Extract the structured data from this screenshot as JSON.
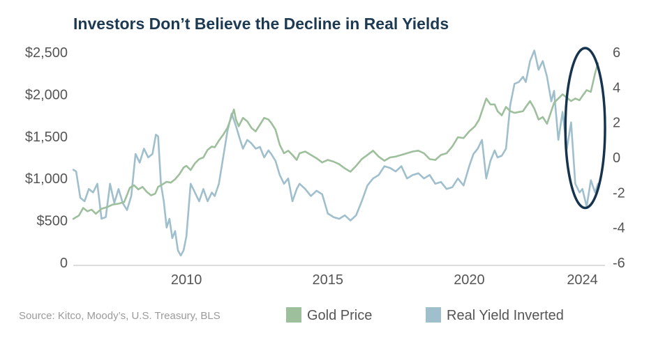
{
  "chart_data": {
    "type": "line",
    "title": "Investors Don’t Believe the Decline in Real Yields",
    "source": "Source: Kitco, Moody’s, U.S. Treasury, BLS",
    "x_axis": {
      "range": [
        2006,
        2024.8
      ],
      "ticks": [
        2010,
        2015,
        2020,
        2024
      ]
    },
    "y_left": {
      "range": [
        0,
        2500
      ],
      "ticks": [
        0,
        500,
        1000,
        1500,
        2000,
        2500
      ],
      "tick_labels": [
        "0",
        "$500",
        "$1,000",
        "$1,500",
        "$2,000",
        "$2,500"
      ]
    },
    "y_right": {
      "range": [
        -6,
        6
      ],
      "ticks": [
        -6,
        -4,
        -2,
        0,
        2,
        4,
        6
      ],
      "tick_labels": [
        "-6",
        "-4",
        "-2",
        "0",
        "2",
        "4",
        "6"
      ]
    },
    "legend_position": "bottom",
    "grid": false,
    "colors": {
      "title": "#1d3a52",
      "gold": "#9ebf9c",
      "real_yield": "#9fbfcd",
      "axis": "#bbbbbb",
      "ellipse": "#16344d"
    },
    "annotation": {
      "type": "ellipse",
      "x_range": [
        2023.4,
        2024.8
      ],
      "y_left_range": [
        650,
        2550
      ]
    },
    "series": [
      {
        "name": "Gold Price",
        "axis": "left",
        "x": [
          2006.0,
          2006.2,
          2006.35,
          2006.5,
          2006.65,
          2006.8,
          2007.0,
          2007.2,
          2007.4,
          2007.6,
          2007.8,
          2008.0,
          2008.15,
          2008.3,
          2008.45,
          2008.6,
          2008.75,
          2008.9,
          2009.0,
          2009.15,
          2009.3,
          2009.45,
          2009.6,
          2009.75,
          2009.9,
          2010.0,
          2010.15,
          2010.3,
          2010.45,
          2010.6,
          2010.75,
          2010.9,
          2011.0,
          2011.15,
          2011.3,
          2011.45,
          2011.6,
          2011.68,
          2011.75,
          2011.85,
          2012.0,
          2012.15,
          2012.3,
          2012.45,
          2012.6,
          2012.75,
          2012.9,
          2013.0,
          2013.15,
          2013.3,
          2013.45,
          2013.6,
          2013.75,
          2013.9,
          2014.0,
          2014.2,
          2014.4,
          2014.6,
          2014.8,
          2015.0,
          2015.2,
          2015.4,
          2015.6,
          2015.8,
          2016.0,
          2016.2,
          2016.4,
          2016.6,
          2016.8,
          2017.0,
          2017.2,
          2017.4,
          2017.6,
          2017.8,
          2018.0,
          2018.2,
          2018.4,
          2018.6,
          2018.8,
          2019.0,
          2019.2,
          2019.4,
          2019.6,
          2019.8,
          2020.0,
          2020.2,
          2020.35,
          2020.5,
          2020.6,
          2020.75,
          2020.9,
          2021.0,
          2021.15,
          2021.3,
          2021.45,
          2021.6,
          2021.75,
          2021.9,
          2022.0,
          2022.15,
          2022.3,
          2022.45,
          2022.6,
          2022.75,
          2022.9,
          2023.0,
          2023.15,
          2023.3,
          2023.45,
          2023.6,
          2023.75,
          2023.9,
          2024.0,
          2024.15,
          2024.3,
          2024.45,
          2024.55
        ],
        "values": [
          520,
          560,
          650,
          610,
          630,
          580,
          640,
          660,
          690,
          700,
          720,
          890,
          920,
          870,
          900,
          840,
          800,
          820,
          900,
          930,
          960,
          950,
          990,
          1050,
          1130,
          1150,
          1100,
          1180,
          1230,
          1250,
          1340,
          1380,
          1370,
          1450,
          1520,
          1600,
          1740,
          1820,
          1700,
          1620,
          1720,
          1680,
          1600,
          1560,
          1640,
          1720,
          1700,
          1660,
          1580,
          1400,
          1300,
          1330,
          1280,
          1220,
          1300,
          1320,
          1280,
          1240,
          1190,
          1220,
          1200,
          1170,
          1120,
          1080,
          1150,
          1230,
          1280,
          1330,
          1260,
          1210,
          1250,
          1260,
          1280,
          1300,
          1320,
          1330,
          1300,
          1230,
          1220,
          1280,
          1300,
          1380,
          1490,
          1480,
          1560,
          1620,
          1700,
          1850,
          1950,
          1880,
          1880,
          1800,
          1750,
          1850,
          1800,
          1780,
          1790,
          1800,
          1850,
          1920,
          1830,
          1700,
          1730,
          1650,
          1800,
          1900,
          1950,
          2000,
          1960,
          1920,
          1950,
          1930,
          1980,
          2050,
          2030,
          2250,
          2370
        ]
      },
      {
        "name": "Real Yield Inverted",
        "axis": "right",
        "x": [
          2006.0,
          2006.1,
          2006.25,
          2006.4,
          2006.55,
          2006.7,
          2006.85,
          2007.0,
          2007.15,
          2007.3,
          2007.45,
          2007.6,
          2007.75,
          2007.9,
          2008.05,
          2008.2,
          2008.35,
          2008.5,
          2008.65,
          2008.8,
          2008.92,
          2009.0,
          2009.1,
          2009.2,
          2009.3,
          2009.4,
          2009.5,
          2009.6,
          2009.7,
          2009.8,
          2009.9,
          2010.0,
          2010.15,
          2010.3,
          2010.45,
          2010.6,
          2010.75,
          2010.9,
          2011.0,
          2011.15,
          2011.3,
          2011.45,
          2011.6,
          2011.75,
          2011.9,
          2012.0,
          2012.15,
          2012.3,
          2012.45,
          2012.6,
          2012.75,
          2012.9,
          2013.0,
          2013.15,
          2013.3,
          2013.45,
          2013.6,
          2013.75,
          2013.9,
          2014.0,
          2014.2,
          2014.4,
          2014.6,
          2014.8,
          2015.0,
          2015.2,
          2015.4,
          2015.6,
          2015.8,
          2016.0,
          2016.2,
          2016.4,
          2016.6,
          2016.8,
          2017.0,
          2017.2,
          2017.4,
          2017.6,
          2017.8,
          2018.0,
          2018.2,
          2018.4,
          2018.6,
          2018.8,
          2019.0,
          2019.2,
          2019.4,
          2019.6,
          2019.8,
          2020.0,
          2020.15,
          2020.3,
          2020.45,
          2020.6,
          2020.75,
          2020.9,
          2021.0,
          2021.15,
          2021.3,
          2021.45,
          2021.6,
          2021.75,
          2021.9,
          2022.0,
          2022.15,
          2022.3,
          2022.45,
          2022.6,
          2022.75,
          2022.9,
          2023.0,
          2023.15,
          2023.3,
          2023.45,
          2023.6,
          2023.75,
          2023.9,
          2024.0,
          2024.15,
          2024.3,
          2024.45,
          2024.55
        ],
        "values": [
          -0.7,
          -0.8,
          -2.3,
          -2.5,
          -1.8,
          -2.0,
          -1.5,
          -3.5,
          -3.4,
          -1.5,
          -2.6,
          -1.8,
          -2.6,
          -3.0,
          -2.2,
          0.2,
          -0.3,
          0.5,
          0.0,
          0.2,
          1.3,
          1.2,
          -1.5,
          -2.5,
          -4.0,
          -3.5,
          -4.6,
          -4.2,
          -5.3,
          -5.6,
          -5.3,
          -4.5,
          -1.5,
          -2.0,
          -2.5,
          -1.8,
          -2.5,
          -2.0,
          -2.2,
          -1.5,
          0.0,
          1.5,
          2.5,
          1.8,
          1.0,
          0.5,
          1.0,
          0.8,
          0.5,
          0.6,
          0.0,
          0.4,
          0.2,
          -0.2,
          -1.0,
          -1.5,
          -1.2,
          -2.5,
          -1.8,
          -1.5,
          -1.8,
          -2.2,
          -1.9,
          -2.1,
          -3.2,
          -3.4,
          -3.5,
          -3.3,
          -3.6,
          -3.3,
          -2.5,
          -1.6,
          -1.2,
          -1.0,
          -0.5,
          -0.6,
          -0.8,
          -0.5,
          -1.2,
          -1.0,
          -0.9,
          -1.2,
          -1.0,
          -1.5,
          -1.4,
          -1.8,
          -1.7,
          -1.2,
          -1.6,
          -0.5,
          0.2,
          0.5,
          1.0,
          -1.2,
          -0.2,
          0.4,
          0.0,
          0.1,
          0.5,
          3.0,
          4.2,
          4.3,
          4.6,
          4.3,
          5.5,
          6.1,
          5.0,
          5.5,
          4.6,
          3.2,
          3.8,
          1.0,
          2.6,
          0.5,
          2.0,
          -1.5,
          -2.0,
          -1.8,
          -2.8,
          -1.3,
          -2.0,
          -1.5
        ]
      }
    ]
  }
}
